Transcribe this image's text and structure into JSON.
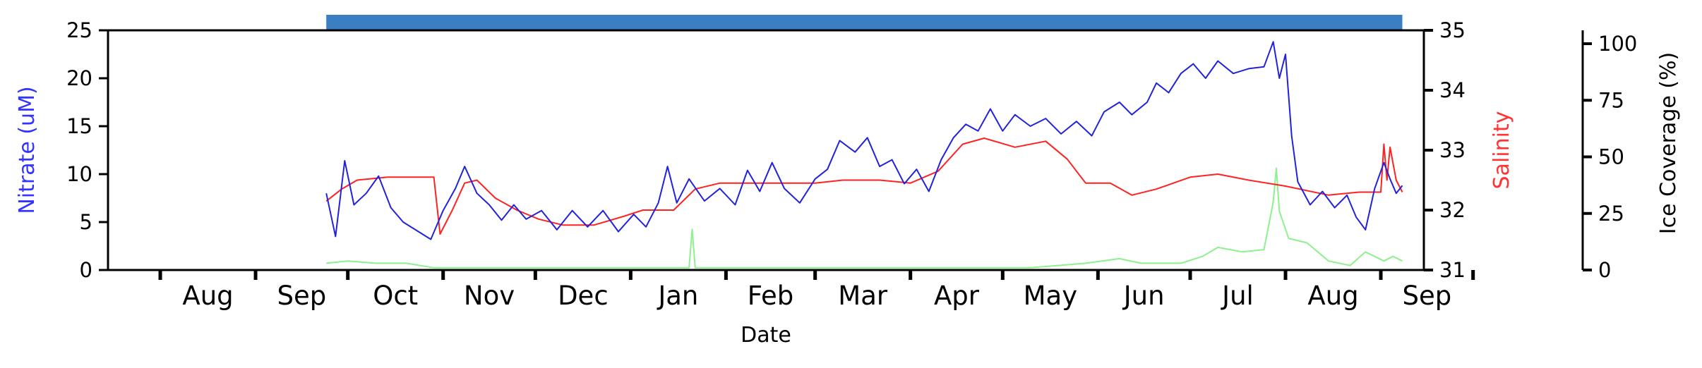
{
  "chart_data": {
    "type": "line",
    "title": "",
    "xlabel": "Date",
    "x_axis": {
      "type": "date",
      "range": [
        "2019-07-15",
        "2020-09-15"
      ],
      "tick_labels": [
        "Aug",
        "Sep",
        "Oct",
        "Nov",
        "Dec",
        "Jan",
        "Feb",
        "Mar",
        "Apr",
        "May",
        "Jun",
        "Jul",
        "Aug",
        "Sep"
      ]
    },
    "axes": {
      "left": {
        "label": "Nitrate (uM)",
        "color": "#3333ff",
        "ylim": [
          0,
          25
        ],
        "ticks": [
          "0",
          "5",
          "10",
          "15",
          "20",
          "25"
        ]
      },
      "right": {
        "label": "Salinity",
        "color": "#ff3333",
        "ylim": [
          31,
          35
        ],
        "ticks": [
          "31",
          "32",
          "33",
          "34",
          "35"
        ]
      },
      "far_right": {
        "label": "Ice Coverage (%)",
        "color": "#000000",
        "ylim": [
          0,
          100
        ],
        "ticks": [
          "0",
          "25",
          "50",
          "75",
          "100"
        ]
      }
    },
    "grid": false,
    "legend": "none",
    "coverage_bar": {
      "color": "#3a7fc1",
      "start": "2019-09-24",
      "end": "2020-09-08"
    },
    "series": [
      {
        "axis": "left",
        "color": "#2222dd",
        "points": [
          [
            "2019-09-24",
            8.0
          ],
          [
            "2019-09-27",
            3.5
          ],
          [
            "2019-09-30",
            11.4
          ],
          [
            "2019-10-03",
            6.8
          ],
          [
            "2019-10-07",
            8.0
          ],
          [
            "2019-10-11",
            9.8
          ],
          [
            "2019-10-15",
            6.5
          ],
          [
            "2019-10-19",
            5.0
          ],
          [
            "2019-10-23",
            4.2
          ],
          [
            "2019-10-28",
            3.2
          ],
          [
            "2019-11-01",
            6.2
          ],
          [
            "2019-11-05",
            8.5
          ],
          [
            "2019-11-08",
            10.8
          ],
          [
            "2019-11-12",
            8.0
          ],
          [
            "2019-11-16",
            6.8
          ],
          [
            "2019-11-20",
            5.2
          ],
          [
            "2019-11-24",
            6.8
          ],
          [
            "2019-11-28",
            5.3
          ],
          [
            "2019-12-03",
            6.2
          ],
          [
            "2019-12-08",
            4.2
          ],
          [
            "2019-12-13",
            6.2
          ],
          [
            "2019-12-18",
            4.5
          ],
          [
            "2019-12-23",
            6.2
          ],
          [
            "2019-12-28",
            4.0
          ],
          [
            "2020-01-02",
            5.8
          ],
          [
            "2020-01-06",
            4.5
          ],
          [
            "2020-01-10",
            7.0
          ],
          [
            "2020-01-13",
            10.8
          ],
          [
            "2020-01-16",
            7.0
          ],
          [
            "2020-01-20",
            9.5
          ],
          [
            "2020-01-25",
            7.2
          ],
          [
            "2020-01-30",
            8.5
          ],
          [
            "2020-02-04",
            6.8
          ],
          [
            "2020-02-08",
            10.4
          ],
          [
            "2020-02-12",
            8.2
          ],
          [
            "2020-02-16",
            11.2
          ],
          [
            "2020-02-20",
            8.5
          ],
          [
            "2020-02-25",
            7.0
          ],
          [
            "2020-03-01",
            9.5
          ],
          [
            "2020-03-05",
            10.5
          ],
          [
            "2020-03-09",
            13.5
          ],
          [
            "2020-03-14",
            12.3
          ],
          [
            "2020-03-18",
            13.8
          ],
          [
            "2020-03-22",
            10.8
          ],
          [
            "2020-03-26",
            11.5
          ],
          [
            "2020-03-30",
            9.0
          ],
          [
            "2020-04-03",
            10.5
          ],
          [
            "2020-04-07",
            8.2
          ],
          [
            "2020-04-11",
            11.5
          ],
          [
            "2020-04-15",
            13.8
          ],
          [
            "2020-04-19",
            15.2
          ],
          [
            "2020-04-23",
            14.5
          ],
          [
            "2020-04-27",
            16.8
          ],
          [
            "2020-05-01",
            14.5
          ],
          [
            "2020-05-05",
            16.2
          ],
          [
            "2020-05-10",
            15.0
          ],
          [
            "2020-05-15",
            15.8
          ],
          [
            "2020-05-20",
            14.2
          ],
          [
            "2020-05-25",
            15.5
          ],
          [
            "2020-05-30",
            14.0
          ],
          [
            "2020-06-03",
            16.5
          ],
          [
            "2020-06-08",
            17.5
          ],
          [
            "2020-06-12",
            16.2
          ],
          [
            "2020-06-17",
            17.5
          ],
          [
            "2020-06-20",
            19.5
          ],
          [
            "2020-06-24",
            18.5
          ],
          [
            "2020-06-28",
            20.5
          ],
          [
            "2020-07-02",
            21.5
          ],
          [
            "2020-07-06",
            20.0
          ],
          [
            "2020-07-10",
            21.8
          ],
          [
            "2020-07-15",
            20.5
          ],
          [
            "2020-07-20",
            21.0
          ],
          [
            "2020-07-25",
            21.2
          ],
          [
            "2020-07-28",
            23.8
          ],
          [
            "2020-07-30",
            20.0
          ],
          [
            "2020-08-01",
            22.5
          ],
          [
            "2020-08-03",
            14.0
          ],
          [
            "2020-08-05",
            9.2
          ],
          [
            "2020-08-09",
            6.8
          ],
          [
            "2020-08-13",
            8.2
          ],
          [
            "2020-08-17",
            6.5
          ],
          [
            "2020-08-21",
            7.8
          ],
          [
            "2020-08-24",
            5.5
          ],
          [
            "2020-08-27",
            4.2
          ],
          [
            "2020-08-30",
            8.5
          ],
          [
            "2020-09-02",
            11.2
          ],
          [
            "2020-09-04",
            9.5
          ],
          [
            "2020-09-06",
            8.0
          ],
          [
            "2020-09-08",
            8.8
          ]
        ]
      },
      {
        "axis": "right",
        "color": "#ff2222",
        "points": [
          [
            "2019-09-24",
            32.15
          ],
          [
            "2019-09-29",
            32.35
          ],
          [
            "2019-10-04",
            32.5
          ],
          [
            "2019-10-14",
            32.55
          ],
          [
            "2019-10-24",
            32.55
          ],
          [
            "2019-10-29",
            32.55
          ],
          [
            "2019-10-31",
            31.6
          ],
          [
            "2019-11-04",
            32.0
          ],
          [
            "2019-11-08",
            32.45
          ],
          [
            "2019-11-12",
            32.5
          ],
          [
            "2019-11-18",
            32.2
          ],
          [
            "2019-11-25",
            32.0
          ],
          [
            "2019-12-02",
            31.85
          ],
          [
            "2019-12-10",
            31.75
          ],
          [
            "2019-12-20",
            31.75
          ],
          [
            "2019-12-30",
            31.9
          ],
          [
            "2020-01-05",
            32.0
          ],
          [
            "2020-01-15",
            32.0
          ],
          [
            "2020-01-22",
            32.35
          ],
          [
            "2020-01-30",
            32.45
          ],
          [
            "2020-02-10",
            32.45
          ],
          [
            "2020-02-20",
            32.45
          ],
          [
            "2020-03-01",
            32.45
          ],
          [
            "2020-03-10",
            32.5
          ],
          [
            "2020-03-22",
            32.5
          ],
          [
            "2020-04-01",
            32.45
          ],
          [
            "2020-04-10",
            32.65
          ],
          [
            "2020-04-18",
            33.1
          ],
          [
            "2020-04-25",
            33.2
          ],
          [
            "2020-05-05",
            33.05
          ],
          [
            "2020-05-15",
            33.15
          ],
          [
            "2020-05-22",
            32.85
          ],
          [
            "2020-05-28",
            32.45
          ],
          [
            "2020-06-05",
            32.45
          ],
          [
            "2020-06-12",
            32.25
          ],
          [
            "2020-06-20",
            32.35
          ],
          [
            "2020-07-01",
            32.55
          ],
          [
            "2020-07-10",
            32.6
          ],
          [
            "2020-07-20",
            32.5
          ],
          [
            "2020-08-01",
            32.4
          ],
          [
            "2020-08-15",
            32.25
          ],
          [
            "2020-08-25",
            32.3
          ],
          [
            "2020-09-01",
            32.3
          ],
          [
            "2020-09-02",
            33.1
          ],
          [
            "2020-09-03",
            32.5
          ],
          [
            "2020-09-04",
            33.05
          ],
          [
            "2020-09-06",
            32.5
          ],
          [
            "2020-09-08",
            32.3
          ]
        ]
      },
      {
        "axis": "far_right",
        "color": "#8ef08e",
        "points": [
          [
            "2019-09-24",
            3
          ],
          [
            "2019-10-01",
            4
          ],
          [
            "2019-10-10",
            3
          ],
          [
            "2019-10-20",
            3
          ],
          [
            "2019-10-29",
            1
          ],
          [
            "2019-11-15",
            1
          ],
          [
            "2019-12-10",
            1
          ],
          [
            "2020-01-10",
            1
          ],
          [
            "2020-01-20",
            1
          ],
          [
            "2020-01-21",
            18
          ],
          [
            "2020-01-22",
            1
          ],
          [
            "2020-02-15",
            1
          ],
          [
            "2020-03-15",
            1
          ],
          [
            "2020-04-15",
            1
          ],
          [
            "2020-05-10",
            1
          ],
          [
            "2020-05-28",
            3
          ],
          [
            "2020-06-08",
            5
          ],
          [
            "2020-06-15",
            3
          ],
          [
            "2020-06-28",
            3
          ],
          [
            "2020-07-05",
            6
          ],
          [
            "2020-07-10",
            10
          ],
          [
            "2020-07-18",
            8
          ],
          [
            "2020-07-25",
            9
          ],
          [
            "2020-07-28",
            30
          ],
          [
            "2020-07-29",
            45
          ],
          [
            "2020-07-30",
            26
          ],
          [
            "2020-08-02",
            14
          ],
          [
            "2020-08-08",
            12
          ],
          [
            "2020-08-15",
            4
          ],
          [
            "2020-08-22",
            2
          ],
          [
            "2020-08-27",
            8
          ],
          [
            "2020-09-02",
            4
          ],
          [
            "2020-09-05",
            6
          ],
          [
            "2020-09-08",
            4
          ]
        ]
      }
    ]
  }
}
